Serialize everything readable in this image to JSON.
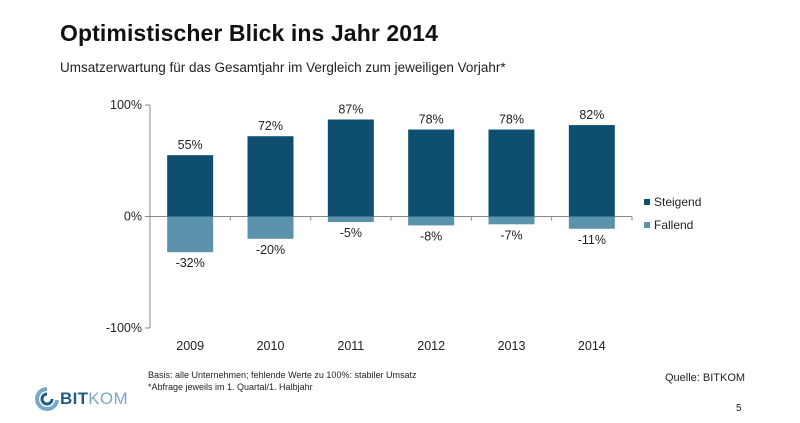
{
  "header": {
    "title": "Optimistischer Blick ins Jahr 2014",
    "subtitle": "Umsatzerwartung für das Gesamtjahr im Vergleich zum jeweiligen Vorjahr*"
  },
  "chart_data": {
    "type": "bar",
    "stacked": true,
    "categories": [
      "2009",
      "2010",
      "2011",
      "2012",
      "2013",
      "2014"
    ],
    "series": [
      {
        "name": "Steigend",
        "values": [
          55,
          72,
          87,
          78,
          78,
          82
        ],
        "labels": [
          "55%",
          "72%",
          "87%",
          "78%",
          "78%",
          "82%"
        ],
        "color": "#0e4f6f"
      },
      {
        "name": "Fallend",
        "values": [
          -32,
          -20,
          -5,
          -8,
          -7,
          -11
        ],
        "labels": [
          "-32%",
          "-20%",
          "-5%",
          "-8%",
          "-7%",
          "-11%"
        ],
        "color": "#5b93ad"
      }
    ],
    "ylim": [
      -100,
      100
    ],
    "yticks": [
      100,
      0,
      -100
    ],
    "ytick_labels": [
      "100%",
      "0%",
      "-100%"
    ],
    "grid": false,
    "legend_position": "right"
  },
  "footer": {
    "note_line1": "Basis: alle Unternehmen; fehlende Werte zu 100%: stabiler Umsatz",
    "note_line2": "*Abfrage jeweils im 1. Quartal/1. Halbjahr",
    "source": "Quelle:  BITKOM",
    "page_number": "5",
    "logo_text_bold": "BIT",
    "logo_text_light": "KOM"
  }
}
